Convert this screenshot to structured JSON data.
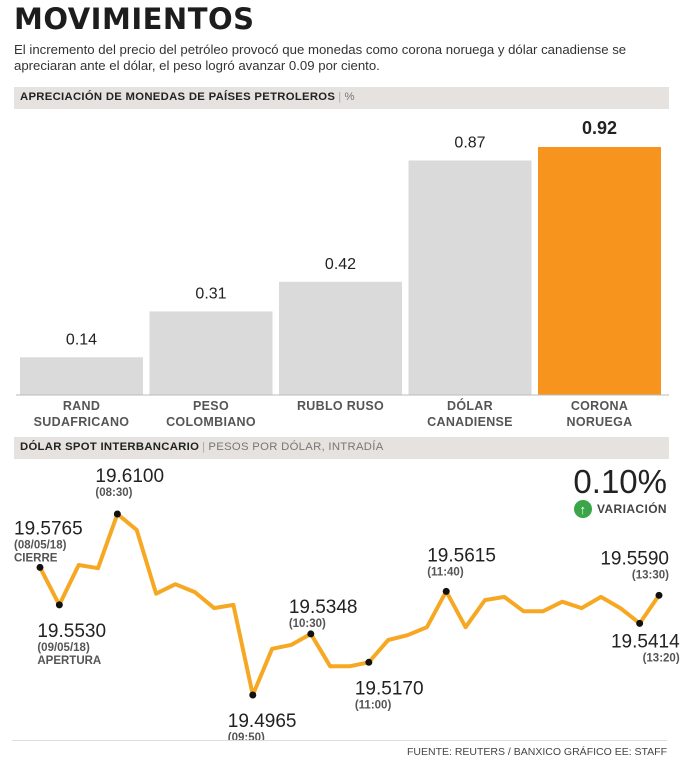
{
  "title": "MOVIMIENTOS",
  "subtitle": "El incremento del precio del petróleo provocó que monedas como corona noruega y dólar canadiense se apreciaran ante el dólar, el peso logró avanzar 0.09 por ciento.",
  "bar_section": {
    "label": "APRECIACIÓN DE MONEDAS DE PAÍSES PETROLEROS",
    "unit": "%"
  },
  "line_section": {
    "label": "DÓLAR SPOT INTERBANCARIO",
    "unit": "PESOS POR DÓLAR, INTRADÍA"
  },
  "variation": {
    "value": "0.10%",
    "label": "VARIACIÓN"
  },
  "colors": {
    "bar_default": "#dadada",
    "highlight": "#f7941d",
    "line": "#f7a823",
    "marker": "#111111"
  },
  "icons": {
    "variation": "arrow-up-circle-icon"
  },
  "footer": "FUENTE: REUTERS / BANXICO GRÁFICO EE: STAFF",
  "chart_data": [
    {
      "type": "bar",
      "title": "APRECIACIÓN DE MONEDAS DE PAÍSES PETROLEROS",
      "ylabel": "%",
      "categories": [
        [
          "RAND",
          "SUDAFRICANO"
        ],
        [
          "PESO",
          "COLOMBIANO"
        ],
        [
          "RUBLO RUSO"
        ],
        [
          "DÓLAR",
          "CANADIENSE"
        ],
        [
          "CORONA",
          "NORUEGA"
        ]
      ],
      "values": [
        0.14,
        0.31,
        0.42,
        0.87,
        0.92
      ],
      "value_labels": [
        "0.14",
        "0.31",
        "0.42",
        "0.87",
        "0.92"
      ],
      "highlight_index": 4,
      "ylim": [
        0,
        0.92
      ]
    },
    {
      "type": "line",
      "title": "DÓLAR SPOT INTERBANCARIO",
      "ylabel": "PESOS POR DÓLAR, INTRADÍA",
      "ylim": [
        19.4965,
        19.61
      ],
      "values": [
        19.5765,
        19.553,
        19.578,
        19.576,
        19.61,
        19.6,
        19.56,
        19.566,
        19.561,
        19.551,
        19.553,
        19.4965,
        19.5255,
        19.528,
        19.5348,
        19.5145,
        19.5145,
        19.517,
        19.531,
        19.534,
        19.539,
        19.5615,
        19.539,
        19.556,
        19.558,
        19.549,
        19.549,
        19.555,
        19.551,
        19.558,
        19.551,
        19.5414,
        19.559
      ],
      "annotations": [
        {
          "index": 0,
          "value": "19.5765",
          "time": "(08/05/18)",
          "note": "CIERRE"
        },
        {
          "index": 1,
          "value": "19.5530",
          "time": "(09/05/18)",
          "note": "APERTURA"
        },
        {
          "index": 4,
          "value": "19.6100",
          "time": "(08:30)",
          "note": ""
        },
        {
          "index": 11,
          "value": "19.4965",
          "time": "(09:50)",
          "note": ""
        },
        {
          "index": 14,
          "value": "19.5348",
          "time": "(10:30)",
          "note": ""
        },
        {
          "index": 17,
          "value": "19.5170",
          "time": "(11:00)",
          "note": ""
        },
        {
          "index": 21,
          "value": "19.5615",
          "time": "(11:40)",
          "note": ""
        },
        {
          "index": 31,
          "value": "19.5414",
          "time": "(13:20)",
          "note": ""
        },
        {
          "index": 32,
          "value": "19.5590",
          "time": "(13:30)",
          "note": ""
        }
      ]
    }
  ]
}
